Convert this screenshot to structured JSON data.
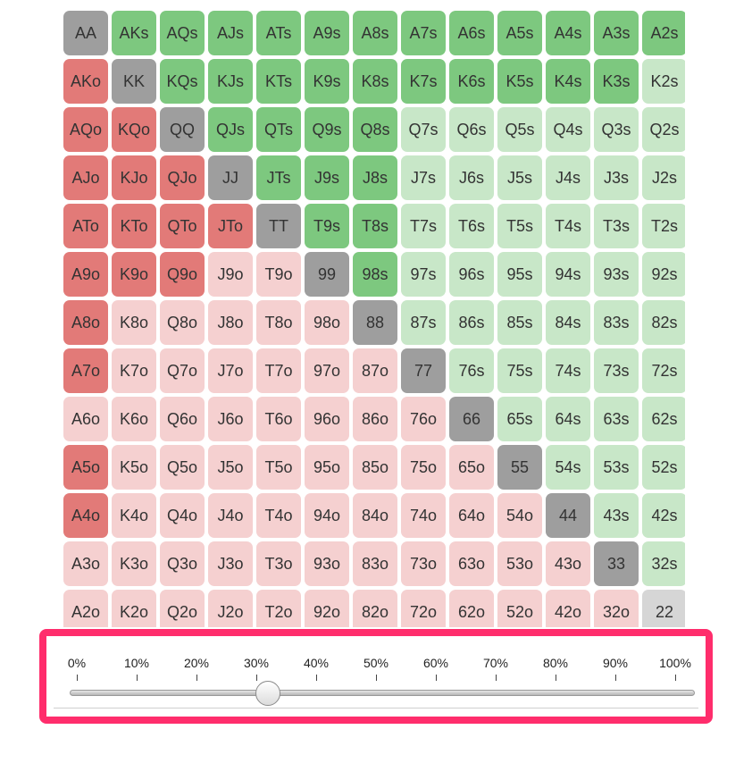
{
  "ranks": [
    "A",
    "K",
    "Q",
    "J",
    "T",
    "9",
    "8",
    "7",
    "6",
    "5",
    "4",
    "3",
    "2"
  ],
  "range_slider": {
    "ticks": [
      "0%",
      "10%",
      "20%",
      "30%",
      "40%",
      "50%",
      "60%",
      "70%",
      "80%",
      "90%",
      "100%"
    ],
    "value_percent": 32
  },
  "hands": [
    [
      "AA",
      "AKs",
      "AQs",
      "AJs",
      "ATs",
      "A9s",
      "A8s",
      "A7s",
      "A6s",
      "A5s",
      "A4s",
      "A3s",
      "A2s"
    ],
    [
      "AKo",
      "KK",
      "KQs",
      "KJs",
      "KTs",
      "K9s",
      "K8s",
      "K7s",
      "K6s",
      "K5s",
      "K4s",
      "K3s",
      "K2s"
    ],
    [
      "AQo",
      "KQo",
      "QQ",
      "QJs",
      "QTs",
      "Q9s",
      "Q8s",
      "Q7s",
      "Q6s",
      "Q5s",
      "Q4s",
      "Q3s",
      "Q2s"
    ],
    [
      "AJo",
      "KJo",
      "QJo",
      "JJ",
      "JTs",
      "J9s",
      "J8s",
      "J7s",
      "J6s",
      "J5s",
      "J4s",
      "J3s",
      "J2s"
    ],
    [
      "ATo",
      "KTo",
      "QTo",
      "JTo",
      "TT",
      "T9s",
      "T8s",
      "T7s",
      "T6s",
      "T5s",
      "T4s",
      "T3s",
      "T2s"
    ],
    [
      "A9o",
      "K9o",
      "Q9o",
      "J9o",
      "T9o",
      "99",
      "98s",
      "97s",
      "96s",
      "95s",
      "94s",
      "93s",
      "92s"
    ],
    [
      "A8o",
      "K8o",
      "Q8o",
      "J8o",
      "T8o",
      "98o",
      "88",
      "87s",
      "86s",
      "85s",
      "84s",
      "83s",
      "82s"
    ],
    [
      "A7o",
      "K7o",
      "Q7o",
      "J7o",
      "T7o",
      "97o",
      "87o",
      "77",
      "76s",
      "75s",
      "74s",
      "73s",
      "72s"
    ],
    [
      "A6o",
      "K6o",
      "Q6o",
      "J6o",
      "T6o",
      "96o",
      "86o",
      "76o",
      "66",
      "65s",
      "64s",
      "63s",
      "62s"
    ],
    [
      "A5o",
      "K5o",
      "Q5o",
      "J5o",
      "T5o",
      "95o",
      "85o",
      "75o",
      "65o",
      "55",
      "54s",
      "53s",
      "52s"
    ],
    [
      "A4o",
      "K4o",
      "Q4o",
      "J4o",
      "T4o",
      "94o",
      "84o",
      "74o",
      "64o",
      "54o",
      "44",
      "43s",
      "42s"
    ],
    [
      "A3o",
      "K3o",
      "Q3o",
      "J3o",
      "T3o",
      "93o",
      "83o",
      "73o",
      "63o",
      "53o",
      "43o",
      "33",
      "32s"
    ],
    [
      "A2o",
      "K2o",
      "Q2o",
      "J2o",
      "T2o",
      "92o",
      "82o",
      "72o",
      "62o",
      "52o",
      "42o",
      "32o",
      "22"
    ]
  ],
  "in_range": [
    [
      1,
      1,
      1,
      1,
      1,
      1,
      1,
      1,
      1,
      1,
      1,
      1,
      1
    ],
    [
      1,
      1,
      1,
      1,
      1,
      1,
      1,
      1,
      1,
      1,
      1,
      1,
      0
    ],
    [
      1,
      1,
      1,
      1,
      1,
      1,
      1,
      0,
      0,
      0,
      0,
      0,
      0
    ],
    [
      1,
      1,
      1,
      1,
      1,
      1,
      1,
      0,
      0,
      0,
      0,
      0,
      0
    ],
    [
      1,
      1,
      1,
      1,
      1,
      1,
      1,
      0,
      0,
      0,
      0,
      0,
      0
    ],
    [
      1,
      1,
      1,
      0,
      0,
      1,
      1,
      0,
      0,
      0,
      0,
      0,
      0
    ],
    [
      1,
      0,
      0,
      0,
      0,
      0,
      1,
      0,
      0,
      0,
      0,
      0,
      0
    ],
    [
      1,
      0,
      0,
      0,
      0,
      0,
      0,
      1,
      0,
      0,
      0,
      0,
      0
    ],
    [
      0,
      0,
      0,
      0,
      0,
      0,
      0,
      0,
      1,
      0,
      0,
      0,
      0
    ],
    [
      1,
      0,
      0,
      0,
      0,
      0,
      0,
      0,
      0,
      1,
      0,
      0,
      0
    ],
    [
      1,
      0,
      0,
      0,
      0,
      0,
      0,
      0,
      0,
      0,
      1,
      0,
      0
    ],
    [
      0,
      0,
      0,
      0,
      0,
      0,
      0,
      0,
      0,
      0,
      0,
      1,
      0
    ],
    [
      0,
      0,
      0,
      0,
      0,
      0,
      0,
      0,
      0,
      0,
      0,
      0,
      0
    ]
  ],
  "colors": {
    "pair_in_range": "#9e9e9e",
    "pair_out_of_range": "#d6d6d6",
    "suited_in_range": "#7dc87f",
    "suited_out_of_range": "#c8e7c8",
    "offsuit_in_range": "#e27a78",
    "offsuit_out_of_range": "#f5d0d0",
    "highlight_border": "#ff2d6c"
  }
}
